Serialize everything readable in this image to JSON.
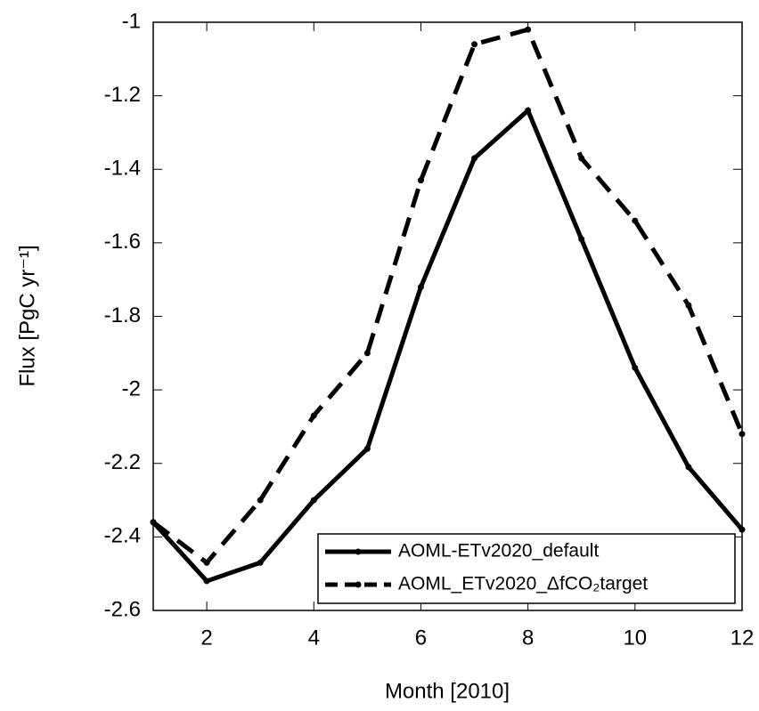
{
  "chart_data": {
    "type": "line",
    "x_label": "Month [2010]",
    "y_label": "Flux [PgC yr⁻¹]",
    "x": [
      1,
      2,
      3,
      4,
      5,
      6,
      7,
      8,
      9,
      10,
      11,
      12
    ],
    "series": [
      {
        "name": "AOML-ETv2020_default",
        "color": "#000000",
        "dash": "solid",
        "values": [
          -2.36,
          -2.52,
          -2.47,
          -2.3,
          -2.16,
          -1.72,
          -1.37,
          -1.24,
          -1.59,
          -1.94,
          -2.21,
          -2.38
        ]
      },
      {
        "name": "AOML_ETv2020_ΔfCO₂target",
        "color": "#000000",
        "dash": "dashed",
        "values": [
          -2.36,
          -2.47,
          -2.3,
          -2.07,
          -1.9,
          -1.43,
          -1.06,
          -1.02,
          -1.37,
          -1.54,
          -1.77,
          -2.12
        ]
      }
    ],
    "xlim": [
      1,
      12
    ],
    "xticks": [
      2,
      4,
      6,
      8,
      10,
      12
    ],
    "ylim": [
      -2.6,
      -1
    ],
    "yticks": [
      -2.6,
      -2.4,
      -2.2,
      -2,
      -1.8,
      -1.6,
      -1.4,
      -1.2,
      -1
    ],
    "grid": false,
    "legend": "lower right"
  }
}
